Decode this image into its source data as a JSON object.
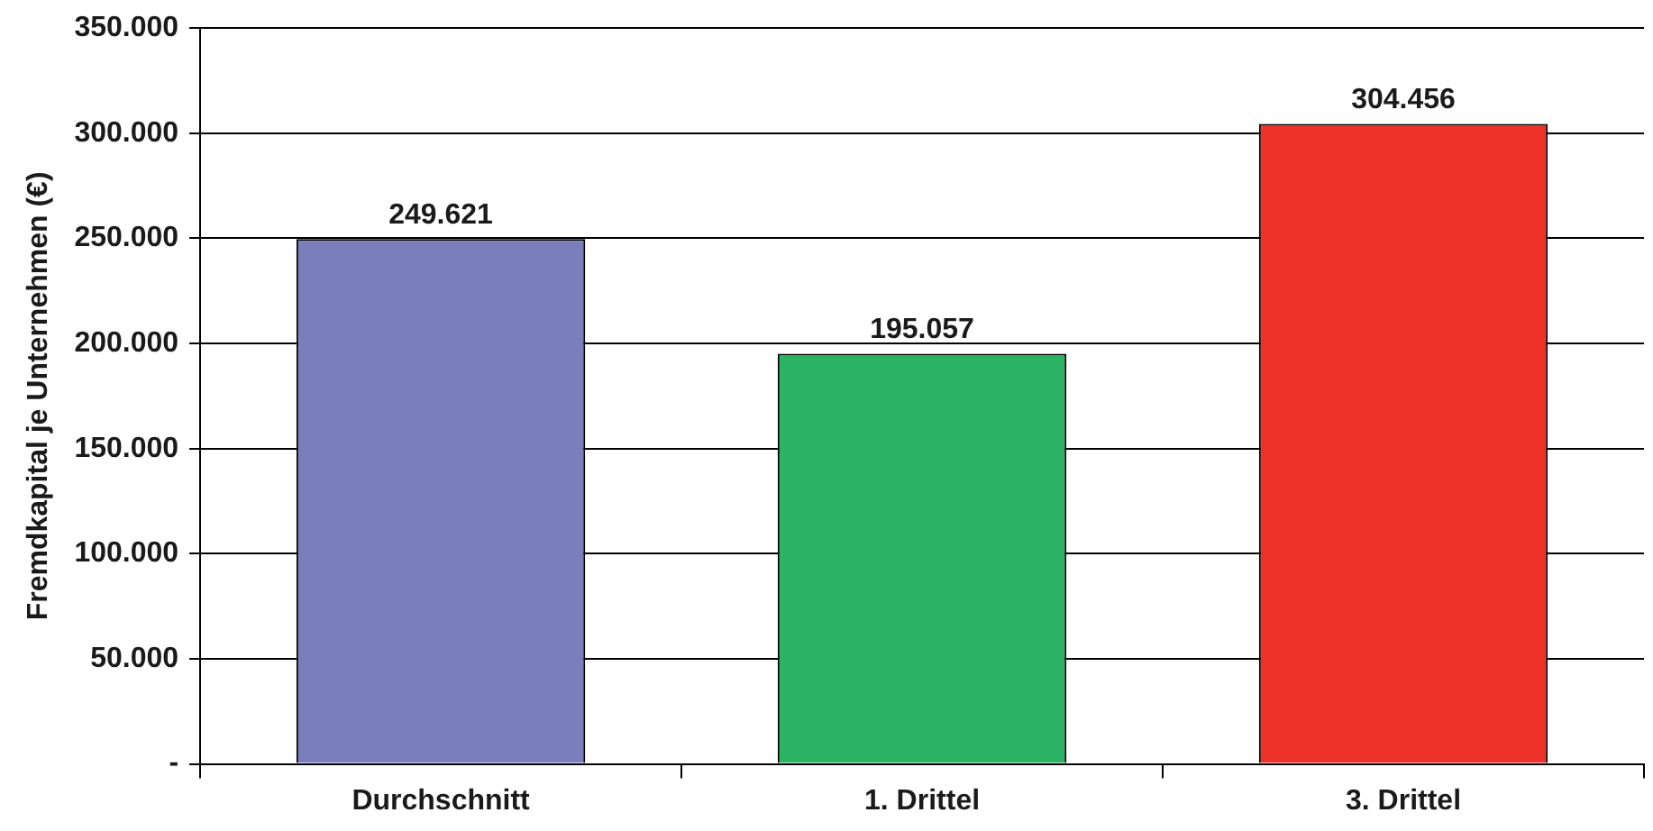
{
  "chart_data": {
    "type": "bar",
    "ylabel": "Fremdkapital je Unternehmen (€)",
    "categories": [
      "Durchschnitt",
      "1. Drittel",
      "3. Drittel"
    ],
    "values": [
      249621,
      195057,
      304456
    ],
    "colors": [
      "#7a7fbc",
      "#2bb463",
      "#ee3129"
    ],
    "value_labels": [
      "249.621",
      "195.057",
      "304.456"
    ],
    "ylim": [
      0,
      350000
    ],
    "yticks": [
      {
        "value": 0,
        "label": "-"
      },
      {
        "value": 50000,
        "label": "50.000"
      },
      {
        "value": 100000,
        "label": "100.000"
      },
      {
        "value": 150000,
        "label": "150.000"
      },
      {
        "value": 200000,
        "label": "200.000"
      },
      {
        "value": 250000,
        "label": "250.000"
      },
      {
        "value": 300000,
        "label": "300.000"
      },
      {
        "value": 350000,
        "label": "350.000"
      }
    ],
    "grid": "y",
    "legend": false
  }
}
